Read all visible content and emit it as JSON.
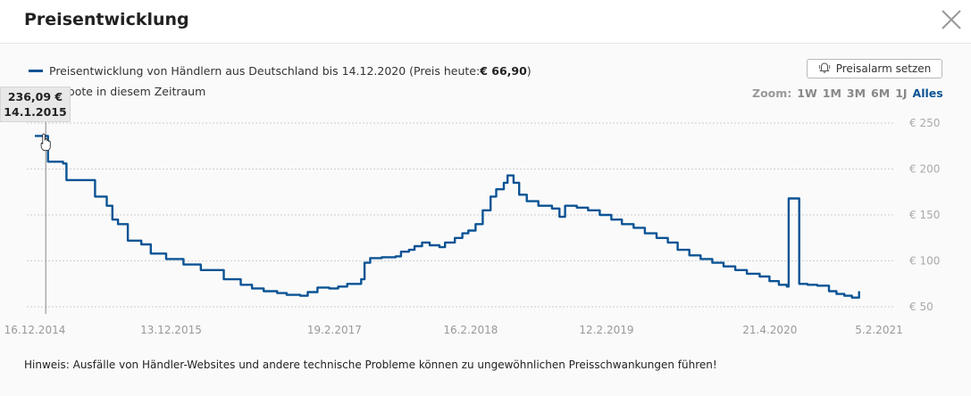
{
  "dialog": {
    "title": "Preisentwicklung",
    "close_icon": "close-icon"
  },
  "legend": {
    "label": "Preisentwicklung von Händlern aus Deutschland bis 14.12.2020 (Preis heute: ",
    "price_today": "€ 66,90",
    "label_end": ")",
    "line2": "e Angebote in diesem Zeitraum",
    "series_color": "#0b5394"
  },
  "alarm_button": {
    "label": "Preisalarm setzen",
    "icon": "bell-icon"
  },
  "zoom": {
    "label": "Zoom:",
    "options": [
      "1W",
      "1M",
      "3M",
      "6M",
      "1J",
      "Alles"
    ],
    "active": "Alles"
  },
  "tooltip": {
    "value": "236,09 €",
    "date": "14.1.2015"
  },
  "hint": "Hinweis: Ausfälle von Händler-Websites und andere technische Probleme können zu ungewöhnlichen Preisschwankungen führen!",
  "chart_data": {
    "type": "line",
    "title": "",
    "xlabel": "",
    "ylabel": "",
    "ylim": [
      50,
      250
    ],
    "y_ticks": [
      "€ 250",
      "€ 200",
      "€ 150",
      "€ 100",
      "€ 50"
    ],
    "y_tick_values": [
      250,
      200,
      150,
      100,
      50
    ],
    "x_ticks": [
      "16.12.2014",
      "13.12.2015",
      "19.2.2017",
      "16.2.2018",
      "12.2.2019",
      "21.4.2020",
      "5.2.2021"
    ],
    "x_tick_dates": [
      "2014-12-16",
      "2015-12-13",
      "2017-02-19",
      "2018-02-16",
      "2019-02-12",
      "2020-04-21",
      "2021-02-05"
    ],
    "xlim": [
      "2014-12-16",
      "2021-02-05"
    ],
    "grid": true,
    "series": [
      {
        "color": "#0b5394",
        "points": [
          [
            "2014-12-16",
            236
          ],
          [
            "2015-01-14",
            236
          ],
          [
            "2015-01-20",
            208
          ],
          [
            "2015-03-01",
            206
          ],
          [
            "2015-03-10",
            188
          ],
          [
            "2015-05-20",
            188
          ],
          [
            "2015-05-25",
            170
          ],
          [
            "2015-06-25",
            160
          ],
          [
            "2015-07-10",
            145
          ],
          [
            "2015-07-25",
            140
          ],
          [
            "2015-08-20",
            122
          ],
          [
            "2015-09-25",
            118
          ],
          [
            "2015-10-20",
            108
          ],
          [
            "2015-11-30",
            102
          ],
          [
            "2016-01-15",
            96
          ],
          [
            "2016-03-01",
            90
          ],
          [
            "2016-05-01",
            80
          ],
          [
            "2016-06-15",
            74
          ],
          [
            "2016-07-15",
            70
          ],
          [
            "2016-08-15",
            67
          ],
          [
            "2016-09-20",
            65
          ],
          [
            "2016-10-15",
            63
          ],
          [
            "2016-11-20",
            62
          ],
          [
            "2016-12-10",
            66
          ],
          [
            "2017-01-05",
            71
          ],
          [
            "2017-02-05",
            70
          ],
          [
            "2017-03-01",
            72
          ],
          [
            "2017-03-25",
            75
          ],
          [
            "2017-05-01",
            80
          ],
          [
            "2017-05-10",
            98
          ],
          [
            "2017-05-25",
            103
          ],
          [
            "2017-06-25",
            104
          ],
          [
            "2017-08-01",
            105
          ],
          [
            "2017-08-15",
            110
          ],
          [
            "2017-09-05",
            112
          ],
          [
            "2017-09-20",
            116
          ],
          [
            "2017-10-10",
            120
          ],
          [
            "2017-10-30",
            117
          ],
          [
            "2017-11-25",
            115
          ],
          [
            "2017-12-10",
            120
          ],
          [
            "2018-01-05",
            125
          ],
          [
            "2018-01-25",
            130
          ],
          [
            "2018-02-10",
            133
          ],
          [
            "2018-03-01",
            140
          ],
          [
            "2018-03-20",
            155
          ],
          [
            "2018-04-10",
            170
          ],
          [
            "2018-04-25",
            178
          ],
          [
            "2018-05-15",
            185
          ],
          [
            "2018-05-25",
            193
          ],
          [
            "2018-06-10",
            185
          ],
          [
            "2018-06-25",
            172
          ],
          [
            "2018-07-15",
            165
          ],
          [
            "2018-08-15",
            160
          ],
          [
            "2018-09-20",
            157
          ],
          [
            "2018-10-10",
            148
          ],
          [
            "2018-10-25",
            160
          ],
          [
            "2018-11-25",
            158
          ],
          [
            "2018-12-25",
            155
          ],
          [
            "2019-01-25",
            150
          ],
          [
            "2019-02-25",
            145
          ],
          [
            "2019-03-25",
            140
          ],
          [
            "2019-04-25",
            136
          ],
          [
            "2019-05-25",
            130
          ],
          [
            "2019-06-25",
            125
          ],
          [
            "2019-07-25",
            120
          ],
          [
            "2019-08-20",
            112
          ],
          [
            "2019-09-20",
            106
          ],
          [
            "2019-10-20",
            102
          ],
          [
            "2019-11-20",
            98
          ],
          [
            "2019-12-20",
            94
          ],
          [
            "2020-01-20",
            90
          ],
          [
            "2020-02-20",
            86
          ],
          [
            "2020-03-25",
            83
          ],
          [
            "2020-04-20",
            78
          ],
          [
            "2020-05-15",
            74
          ],
          [
            "2020-06-05",
            72
          ],
          [
            "2020-06-10",
            168
          ],
          [
            "2020-06-30",
            168
          ],
          [
            "2020-07-08",
            75
          ],
          [
            "2020-07-30",
            74
          ],
          [
            "2020-08-25",
            73
          ],
          [
            "2020-09-25",
            67
          ],
          [
            "2020-10-15",
            64
          ],
          [
            "2020-11-05",
            62
          ],
          [
            "2020-11-25",
            60
          ],
          [
            "2020-12-14",
            67
          ]
        ]
      }
    ]
  }
}
